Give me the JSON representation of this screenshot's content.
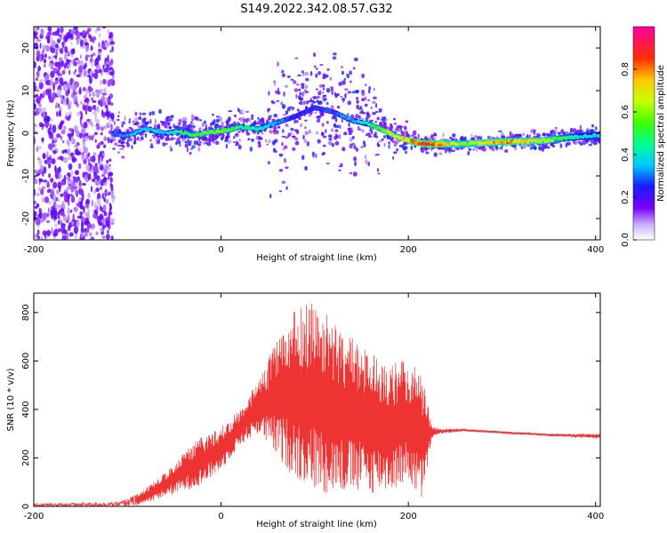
{
  "title": "S149.2022.342.08.57.G32",
  "chart_data": [
    {
      "type": "heatmap",
      "title": "S149.2022.342.08.57.G32",
      "xlabel": "Height of straight line (km)",
      "ylabel": "Frequency (Hz)",
      "xlim": [
        -200,
        405
      ],
      "ylim": [
        -25,
        25
      ],
      "xticks": [
        "-200",
        "0",
        "200",
        "400"
      ],
      "yticks": [
        "-20",
        "-10",
        "0",
        "10",
        "20"
      ],
      "colorbar": {
        "label": "Normalized spectral amplitude",
        "range": [
          0,
          1
        ],
        "ticks": [
          "0.0",
          "0.2",
          "0.4",
          "0.6",
          "0.8"
        ]
      },
      "ridge": {
        "x": [
          -115,
          -100,
          -80,
          -60,
          -45,
          -30,
          -10,
          10,
          20,
          40,
          60,
          80,
          100,
          120,
          140,
          160,
          175,
          190,
          205,
          220,
          260,
          300,
          340,
          380,
          405
        ],
        "y": [
          0,
          -0.5,
          1,
          0,
          0.5,
          -0.5,
          0.3,
          0.8,
          1.5,
          1,
          2.5,
          4,
          6,
          5,
          3,
          2,
          0.5,
          -1,
          -2,
          -2.5,
          -2.5,
          -2,
          -1.8,
          -0.8,
          -0.5
        ],
        "amplitude": [
          0.3,
          0.35,
          0.4,
          0.35,
          0.45,
          0.55,
          0.6,
          0.55,
          0.5,
          0.45,
          0.35,
          0.25,
          0.3,
          0.3,
          0.35,
          0.5,
          0.6,
          0.7,
          0.8,
          0.95,
          0.6,
          0.85,
          0.7,
          0.45,
          0.4
        ]
      },
      "noise_region_x": [
        -200,
        -115
      ]
    },
    {
      "type": "line",
      "xlabel": "Height of straight line (km)",
      "ylabel": "SNR (10 * v/v)",
      "xlim": [
        -200,
        405
      ],
      "ylim": [
        0,
        880
      ],
      "xticks": [
        "-200",
        "0",
        "200",
        "400"
      ],
      "yticks": [
        "0",
        "200",
        "400",
        "600",
        "800"
      ],
      "color": "#ee3333",
      "envelope": {
        "x": [
          -200,
          -150,
          -110,
          -90,
          -75,
          -60,
          -40,
          -20,
          0,
          20,
          40,
          60,
          80,
          100,
          120,
          140,
          160,
          180,
          200,
          215,
          225,
          235,
          260,
          300,
          350,
          400,
          405
        ],
        "low": [
          0,
          0,
          0,
          0,
          20,
          40,
          60,
          90,
          150,
          250,
          300,
          200,
          110,
          60,
          50,
          50,
          50,
          60,
          100,
          10,
          280,
          300,
          310,
          300,
          290,
          280,
          280
        ],
        "high": [
          12,
          15,
          18,
          50,
          90,
          140,
          230,
          290,
          330,
          400,
          520,
          700,
          820,
          850,
          760,
          700,
          640,
          600,
          600,
          560,
          330,
          320,
          320,
          310,
          300,
          300,
          300
        ]
      }
    }
  ]
}
